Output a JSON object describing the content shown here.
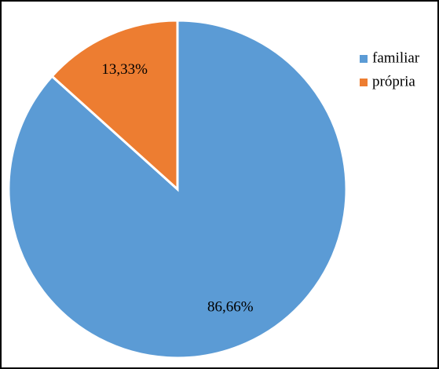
{
  "chart_data": {
    "type": "pie",
    "categories": [
      "familiar",
      "própria"
    ],
    "values": [
      86.66,
      13.33
    ],
    "value_labels": [
      "86,66%",
      "13,33%"
    ],
    "colors": [
      "#5b9bd5",
      "#ed7d31"
    ],
    "legend": "right"
  }
}
